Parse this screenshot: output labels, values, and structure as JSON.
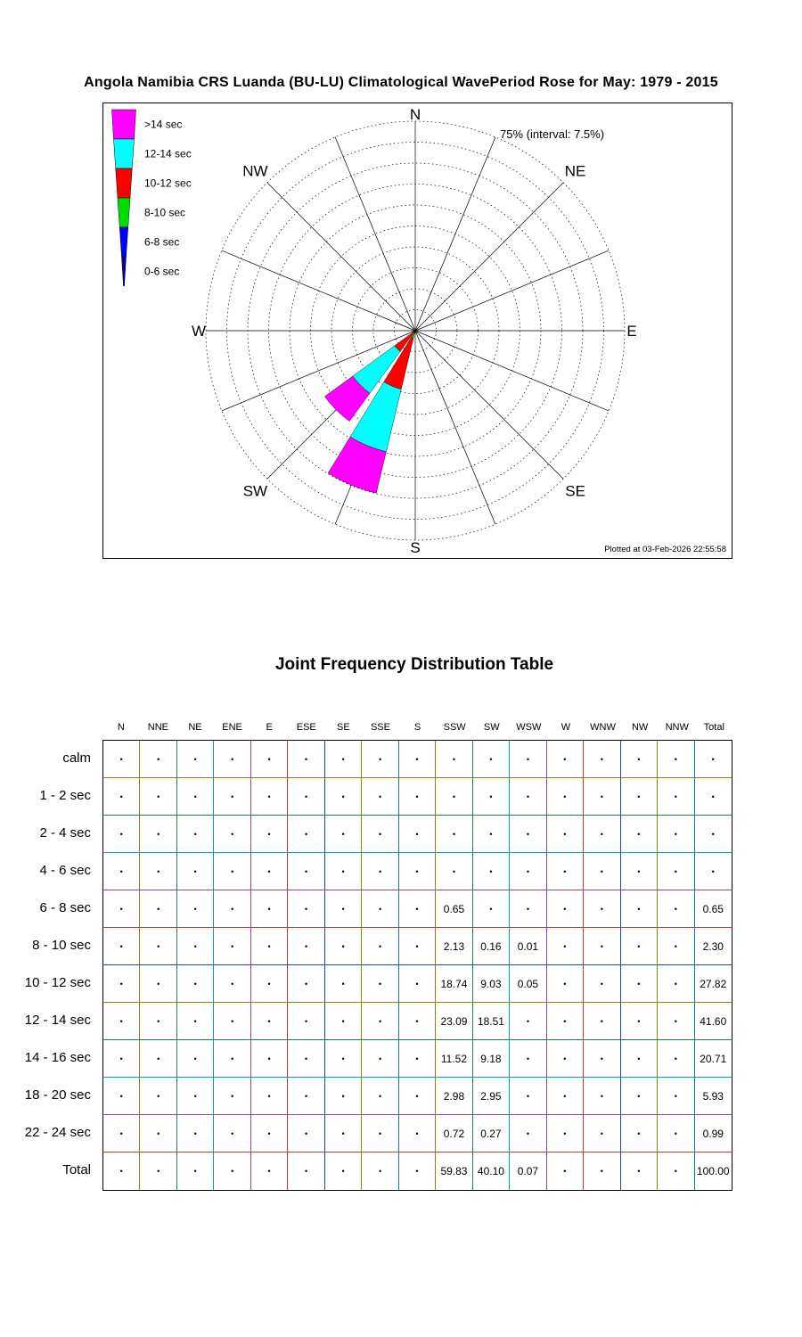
{
  "page": {
    "title": "Angola Namibia CRS Luanda (BU-LU) Climatological WavePeriod Rose for May: 1979 - 2015"
  },
  "rose": {
    "max_label": "75% (interval: 7.5%)",
    "footer": "Plotted at 03-Feb-2026 22:55:58",
    "compass": [
      {
        "label": "N",
        "angle": 0
      },
      {
        "label": "NE",
        "angle": 45
      },
      {
        "label": "E",
        "angle": 90
      },
      {
        "label": "SE",
        "angle": 135
      },
      {
        "label": "S",
        "angle": 180
      },
      {
        "label": "SW",
        "angle": 225
      },
      {
        "label": "W",
        "angle": 270
      },
      {
        "label": "NW",
        "angle": 315
      }
    ],
    "legend": [
      {
        "label": ">14 sec",
        "color": "#ff00ff"
      },
      {
        "label": "12-14 sec",
        "color": "#00ffff"
      },
      {
        "label": "10-12 sec",
        "color": "#ff0000"
      },
      {
        "label": "8-10 sec",
        "color": "#00dd00"
      },
      {
        "label": "6-8 sec",
        "color": "#0000ff"
      },
      {
        "label": "0-6 sec",
        "color": "#000099"
      }
    ]
  },
  "chart_data": {
    "type": "rose",
    "title": "Climatological WavePeriod Rose for May: 1979 - 2015",
    "units": "percent",
    "ring_interval_pct": 7.5,
    "max_pct": 75,
    "num_rings": 10,
    "directions": [
      "N",
      "NNE",
      "NE",
      "ENE",
      "E",
      "ESE",
      "SE",
      "SSE",
      "S",
      "SSW",
      "SW",
      "WSW",
      "W",
      "WNW",
      "NW",
      "NNW"
    ],
    "series": [
      {
        "name": "0-6 sec",
        "color": "#000099",
        "values": [
          0,
          0,
          0,
          0,
          0,
          0,
          0,
          0,
          0,
          0,
          0,
          0,
          0,
          0,
          0,
          0
        ]
      },
      {
        "name": "6-8 sec",
        "color": "#0000ff",
        "values": [
          0,
          0,
          0,
          0,
          0,
          0,
          0,
          0,
          0,
          0.65,
          0,
          0,
          0,
          0,
          0,
          0
        ]
      },
      {
        "name": "8-10 sec",
        "color": "#00dd00",
        "values": [
          0,
          0,
          0,
          0,
          0,
          0,
          0,
          0,
          0,
          2.13,
          0.16,
          0.01,
          0,
          0,
          0,
          0
        ]
      },
      {
        "name": "10-12 sec",
        "color": "#ff0000",
        "values": [
          0,
          0,
          0,
          0,
          0,
          0,
          0,
          0,
          0,
          18.74,
          9.03,
          0.05,
          0,
          0,
          0,
          0
        ]
      },
      {
        "name": "12-14 sec",
        "color": "#00ffff",
        "values": [
          0,
          0,
          0,
          0,
          0,
          0,
          0,
          0,
          0,
          23.09,
          18.51,
          0,
          0,
          0,
          0,
          0
        ]
      },
      {
        "name": ">14 sec",
        "color": "#ff00ff",
        "values": [
          0,
          0,
          0,
          0,
          0,
          0,
          0,
          0,
          0,
          15.22,
          12.4,
          0,
          0,
          0,
          0,
          0
        ]
      }
    ]
  },
  "table": {
    "title": "Joint Frequency Distribution Table",
    "columns": [
      "N",
      "NNE",
      "NE",
      "ENE",
      "E",
      "ESE",
      "SE",
      "SSE",
      "S",
      "SSW",
      "SW",
      "WSW",
      "W",
      "WNW",
      "NW",
      "NNW",
      "Total"
    ],
    "rows": [
      {
        "label": "calm",
        "values": [
          "•",
          "•",
          "•",
          "•",
          "•",
          "•",
          "•",
          "•",
          "•",
          "•",
          "•",
          "•",
          "•",
          "•",
          "•",
          "•",
          "•"
        ]
      },
      {
        "label": "1 - 2  sec",
        "values": [
          "•",
          "•",
          "•",
          "•",
          "•",
          "•",
          "•",
          "•",
          "•",
          "•",
          "•",
          "•",
          "•",
          "•",
          "•",
          "•",
          "•"
        ]
      },
      {
        "label": "2 - 4  sec",
        "values": [
          "•",
          "•",
          "•",
          "•",
          "•",
          "•",
          "•",
          "•",
          "•",
          "•",
          "•",
          "•",
          "•",
          "•",
          "•",
          "•",
          "•"
        ]
      },
      {
        "label": "4 - 6  sec",
        "values": [
          "•",
          "•",
          "•",
          "•",
          "•",
          "•",
          "•",
          "•",
          "•",
          "•",
          "•",
          "•",
          "•",
          "•",
          "•",
          "•",
          "•"
        ]
      },
      {
        "label": "6 - 8  sec",
        "values": [
          "•",
          "•",
          "•",
          "•",
          "•",
          "•",
          "•",
          "•",
          "•",
          "0.65",
          "•",
          "•",
          "•",
          "•",
          "•",
          "•",
          "0.65"
        ]
      },
      {
        "label": "8 - 10 sec",
        "values": [
          "•",
          "•",
          "•",
          "•",
          "•",
          "•",
          "•",
          "•",
          "•",
          "2.13",
          "0.16",
          "0.01",
          "•",
          "•",
          "•",
          "•",
          "2.30"
        ]
      },
      {
        "label": "10 - 12 sec",
        "values": [
          "•",
          "•",
          "•",
          "•",
          "•",
          "•",
          "•",
          "•",
          "•",
          "18.74",
          "9.03",
          "0.05",
          "•",
          "•",
          "•",
          "•",
          "27.82"
        ]
      },
      {
        "label": "12 - 14 sec",
        "values": [
          "•",
          "•",
          "•",
          "•",
          "•",
          "•",
          "•",
          "•",
          "•",
          "23.09",
          "18.51",
          "•",
          "•",
          "•",
          "•",
          "•",
          "41.60"
        ]
      },
      {
        "label": "14 - 16 sec",
        "values": [
          "•",
          "•",
          "•",
          "•",
          "•",
          "•",
          "•",
          "•",
          "•",
          "11.52",
          "9.18",
          "•",
          "•",
          "•",
          "•",
          "•",
          "20.71"
        ]
      },
      {
        "label": "18 - 20 sec",
        "values": [
          "•",
          "•",
          "•",
          "•",
          "•",
          "•",
          "•",
          "•",
          "•",
          "2.98",
          "2.95",
          "•",
          "•",
          "•",
          "•",
          "•",
          "5.93"
        ]
      },
      {
        "label": "22 - 24 sec",
        "values": [
          "•",
          "•",
          "•",
          "•",
          "•",
          "•",
          "•",
          "•",
          "•",
          "0.72",
          "0.27",
          "•",
          "•",
          "•",
          "•",
          "•",
          "0.99"
        ]
      },
      {
        "label": "Total",
        "values": [
          "•",
          "•",
          "•",
          "•",
          "•",
          "•",
          "•",
          "•",
          "•",
          "59.83",
          "40.10",
          "0.07",
          "•",
          "•",
          "•",
          "•",
          "100.00"
        ]
      }
    ]
  }
}
